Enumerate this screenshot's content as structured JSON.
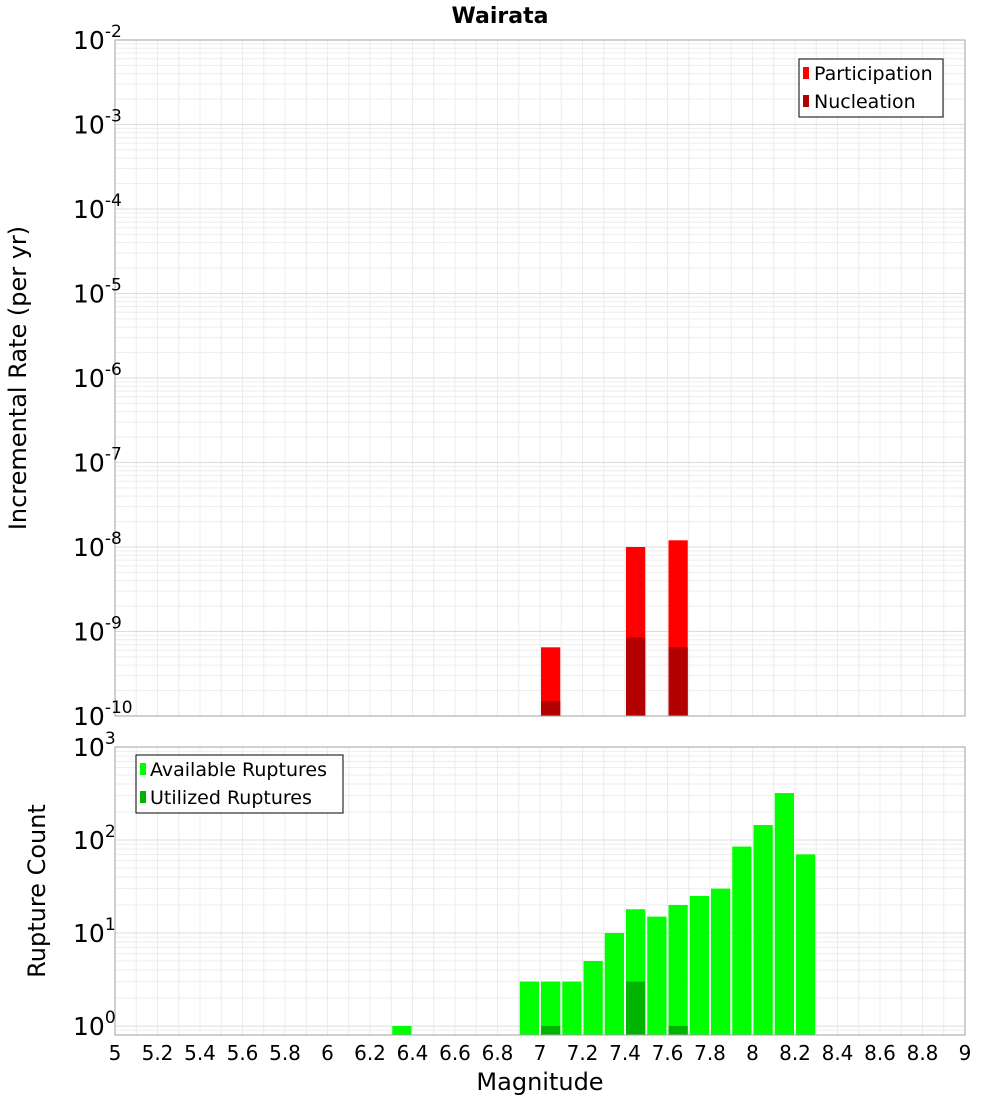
{
  "title": "Wairata",
  "chart_data": [
    {
      "type": "bar",
      "panel": "top",
      "title": "Wairata",
      "xlabel": "Magnitude",
      "ylabel": "Incremental Rate (per yr)",
      "yscale": "log",
      "ylim": [
        1e-10,
        0.01
      ],
      "xlim": [
        5,
        9
      ],
      "bin_width": 0.1,
      "grid": true,
      "legend_position": "top-right",
      "series": [
        {
          "name": "Participation",
          "color": "#ff0000",
          "x": [
            7.05,
            7.45,
            7.65
          ],
          "values": [
            6.5e-10,
            1e-08,
            1.2e-08
          ]
        },
        {
          "name": "Nucleation",
          "color": "#b30000",
          "x": [
            7.05,
            7.45,
            7.65
          ],
          "values": [
            1.5e-10,
            8.5e-10,
            6.5e-10
          ]
        }
      ]
    },
    {
      "type": "bar",
      "panel": "bottom",
      "xlabel": "Magnitude",
      "ylabel": "Rupture Count",
      "yscale": "log",
      "ylim": [
        0.8,
        1000
      ],
      "xlim": [
        5,
        9
      ],
      "bin_width": 0.1,
      "grid": true,
      "legend_position": "top-left",
      "x_ticks": [
        "5",
        "5.2",
        "5.4",
        "5.6",
        "5.8",
        "6",
        "6.2",
        "6.4",
        "6.6",
        "6.8",
        "7",
        "7.2",
        "7.4",
        "7.6",
        "7.8",
        "8",
        "8.2",
        "8.4",
        "8.6",
        "8.8",
        "9"
      ],
      "series": [
        {
          "name": "Available Ruptures",
          "color": "#00ff00",
          "x": [
            6.35,
            6.95,
            7.05,
            7.15,
            7.25,
            7.35,
            7.45,
            7.55,
            7.65,
            7.75,
            7.85,
            7.95,
            8.05,
            8.15,
            8.25
          ],
          "values": [
            1,
            3,
            3,
            3,
            5,
            10,
            18,
            15,
            20,
            25,
            30,
            85,
            145,
            320,
            70
          ]
        },
        {
          "name": "Utilized Ruptures",
          "color": "#00b300",
          "x": [
            7.05,
            7.45,
            7.65
          ],
          "values": [
            1,
            3,
            1
          ]
        }
      ]
    }
  ]
}
